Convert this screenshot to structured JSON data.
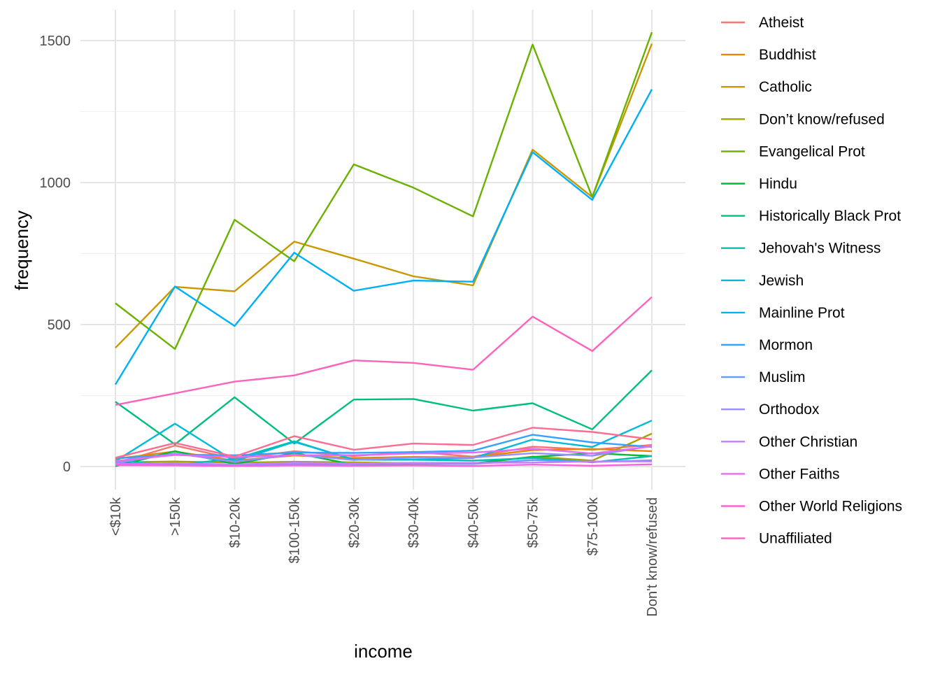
{
  "chart_data": {
    "type": "line",
    "title": "",
    "xlabel": "income",
    "ylabel": "frequency",
    "categories": [
      "<$10k",
      ">150k",
      "$10-20k",
      "$100-150k",
      "$20-30k",
      "$30-40k",
      "$40-50k",
      "$50-75k",
      "$75-100k",
      "Don't know/refused"
    ],
    "ylim": [
      -70,
      1560
    ],
    "yticks": [
      0,
      500,
      1000,
      1500
    ],
    "ytick_labels": [
      "0",
      "500",
      "1000",
      "1500"
    ],
    "grid": true,
    "legend_position": "right",
    "series": [
      {
        "name": "Atheist",
        "color": "#F8766D",
        "values": [
          12,
          74,
          27,
          54,
          37,
          52,
          35,
          70,
          59,
          76
        ]
      },
      {
        "name": "Buddhist",
        "color": "#E58700",
        "values": [
          27,
          53,
          21,
          39,
          30,
          34,
          33,
          58,
          62,
          54
        ]
      },
      {
        "name": "Catholic",
        "color": "#C99800",
        "values": [
          418,
          633,
          617,
          792,
          732,
          670,
          638,
          1116,
          949,
          1489
        ]
      },
      {
        "name": "Don’t know/refused",
        "color": "#A3A500",
        "values": [
          15,
          18,
          14,
          17,
          15,
          11,
          10,
          35,
          21,
          116
        ]
      },
      {
        "name": "Evangelical Prot",
        "color": "#6BB100",
        "values": [
          575,
          414,
          869,
          723,
          1064,
          982,
          881,
          1486,
          949,
          1529
        ]
      },
      {
        "name": "Hindu",
        "color": "#00BA38",
        "values": [
          1,
          54,
          9,
          48,
          7,
          9,
          11,
          34,
          47,
          37
        ]
      },
      {
        "name": "Historically Black Prot",
        "color": "#00BF7D",
        "values": [
          228,
          78,
          244,
          81,
          236,
          238,
          197,
          223,
          131,
          339
        ]
      },
      {
        "name": "Jehovah's Witness",
        "color": "#00C0AF",
        "values": [
          20,
          6,
          27,
          89,
          24,
          24,
          21,
          30,
          15,
          37
        ]
      },
      {
        "name": "Jewish",
        "color": "#00BCD8",
        "values": [
          19,
          151,
          19,
          87,
          25,
          25,
          30,
          95,
          69,
          162
        ]
      },
      {
        "name": "Mainline Prot",
        "color": "#00B0F6",
        "values": [
          289,
          634,
          495,
          753,
          619,
          655,
          651,
          1107,
          939,
          1328
        ]
      },
      {
        "name": "Mormon",
        "color": "#35A2FF",
        "values": [
          29,
          42,
          40,
          49,
          48,
          51,
          56,
          112,
          85,
          69
        ]
      },
      {
        "name": "Muslim",
        "color": "#619CFF",
        "values": [
          6,
          6,
          7,
          8,
          9,
          10,
          9,
          23,
          16,
          22
        ]
      },
      {
        "name": "Orthodox",
        "color": "#9590FF",
        "values": [
          13,
          46,
          17,
          42,
          23,
          32,
          32,
          47,
          38,
          73
        ]
      },
      {
        "name": "Other Christian",
        "color": "#C77CFF",
        "values": [
          9,
          12,
          7,
          14,
          11,
          13,
          13,
          14,
          18,
          18
        ]
      },
      {
        "name": "Other Faiths",
        "color": "#E76BF3",
        "values": [
          20,
          41,
          33,
          40,
          40,
          46,
          49,
          63,
          46,
          71
        ]
      },
      {
        "name": "Other World Religions",
        "color": "#FA62DB",
        "values": [
          5,
          4,
          2,
          4,
          3,
          4,
          2,
          7,
          3,
          8
        ]
      },
      {
        "name": "Unaffiliated",
        "color": "#FF62BC",
        "values": [
          217,
          258,
          299,
          321,
          374,
          365,
          341,
          528,
          407,
          597
        ]
      },
      {
        "name": "",
        "color": "#FF6C91",
        "values": [
          31,
          83,
          35,
          107,
          59,
          81,
          76,
          137,
          122,
          96
        ]
      }
    ]
  }
}
